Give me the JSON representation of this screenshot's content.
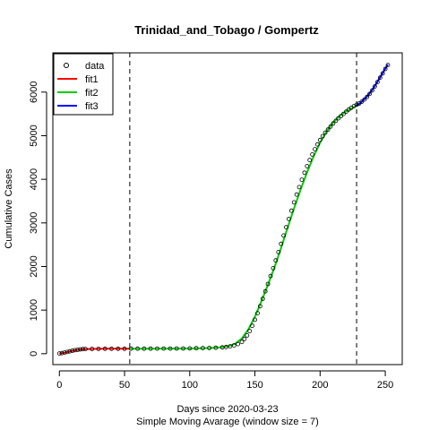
{
  "chart_data": {
    "type": "scatter",
    "title": "Trinidad_and_Tobago / Gompertz",
    "xlabel": "Days since 2020-03-23",
    "subtitle": "Simple Moving Avarage (window size = 7)",
    "ylabel": "Cumulative Cases",
    "xlim": [
      -5,
      263
    ],
    "ylim": [
      -250,
      6900
    ],
    "x_ticks": [
      "0",
      "50",
      "100",
      "150",
      "200",
      "250"
    ],
    "y_ticks": [
      "0",
      "1000",
      "2000",
      "3000",
      "4000",
      "5000",
      "6000"
    ],
    "vlines": [
      54,
      228
    ],
    "legend_position": "top-left",
    "legend": [
      {
        "label": "data",
        "kind": "point",
        "color": "#000000"
      },
      {
        "label": "fit1",
        "kind": "line",
        "color": "#ff0000"
      },
      {
        "label": "fit2",
        "kind": "line",
        "color": "#00cd00"
      },
      {
        "label": "fit3",
        "kind": "line",
        "color": "#0000ff"
      }
    ],
    "data_points": {
      "x": [
        0,
        2,
        4,
        6,
        8,
        10,
        12,
        14,
        16,
        18,
        20,
        25,
        30,
        35,
        40,
        45,
        50,
        55,
        60,
        65,
        70,
        75,
        80,
        85,
        90,
        95,
        100,
        105,
        110,
        115,
        120,
        125,
        128,
        131,
        134,
        137,
        140,
        142,
        144,
        146,
        148,
        150,
        152,
        154,
        156,
        158,
        160,
        162,
        164,
        166,
        168,
        170,
        172,
        174,
        176,
        178,
        180,
        182,
        184,
        186,
        188,
        190,
        192,
        194,
        196,
        198,
        200,
        202,
        204,
        206,
        208,
        210,
        212,
        214,
        216,
        218,
        220,
        222,
        224,
        226,
        228,
        230,
        232,
        234,
        236,
        238,
        240,
        242,
        244,
        246,
        248,
        250,
        252
      ],
      "y": [
        5,
        12,
        25,
        40,
        55,
        68,
        80,
        90,
        100,
        105,
        108,
        110,
        112,
        113,
        113,
        114,
        114,
        115,
        115,
        116,
        116,
        117,
        117,
        118,
        119,
        120,
        122,
        125,
        128,
        132,
        137,
        145,
        155,
        170,
        190,
        220,
        270,
        340,
        420,
        520,
        640,
        780,
        930,
        1090,
        1260,
        1430,
        1600,
        1780,
        1960,
        2140,
        2330,
        2520,
        2710,
        2900,
        3090,
        3280,
        3470,
        3650,
        3820,
        3990,
        4150,
        4300,
        4440,
        4570,
        4690,
        4800,
        4900,
        4990,
        5070,
        5140,
        5210,
        5280,
        5340,
        5400,
        5450,
        5500,
        5550,
        5600,
        5640,
        5680,
        5710,
        5740,
        5780,
        5830,
        5890,
        5960,
        6040,
        6130,
        6230,
        6330,
        6430,
        6530,
        6620
      ]
    },
    "series": [
      {
        "name": "fit1",
        "color": "#ff0000",
        "x": [
          0,
          2,
          4,
          6,
          8,
          10,
          12,
          14,
          16,
          18,
          20,
          25,
          30,
          35,
          40,
          45,
          50,
          54
        ],
        "y": [
          3,
          10,
          22,
          38,
          52,
          65,
          77,
          87,
          96,
          102,
          106,
          110,
          112,
          113,
          113,
          114,
          114,
          115
        ]
      },
      {
        "name": "fit2",
        "color": "#00cd00",
        "x": [
          54,
          60,
          70,
          80,
          90,
          100,
          110,
          115,
          120,
          125,
          130,
          135,
          140,
          145,
          150,
          155,
          160,
          165,
          170,
          175,
          180,
          185,
          190,
          195,
          200,
          205,
          210,
          215,
          220,
          225,
          228
        ],
        "y": [
          115,
          115,
          116,
          117,
          118,
          120,
          125,
          130,
          138,
          150,
          175,
          230,
          350,
          560,
          850,
          1200,
          1580,
          1980,
          2420,
          2880,
          3330,
          3760,
          4160,
          4520,
          4840,
          5100,
          5300,
          5450,
          5560,
          5640,
          5690
        ]
      },
      {
        "name": "fit3",
        "color": "#0000ff",
        "x": [
          228,
          230,
          232,
          234,
          236,
          238,
          240,
          242,
          244,
          246,
          248,
          250,
          252
        ],
        "y": [
          5690,
          5730,
          5780,
          5840,
          5900,
          5970,
          6050,
          6140,
          6240,
          6340,
          6440,
          6540,
          6630
        ]
      }
    ]
  }
}
